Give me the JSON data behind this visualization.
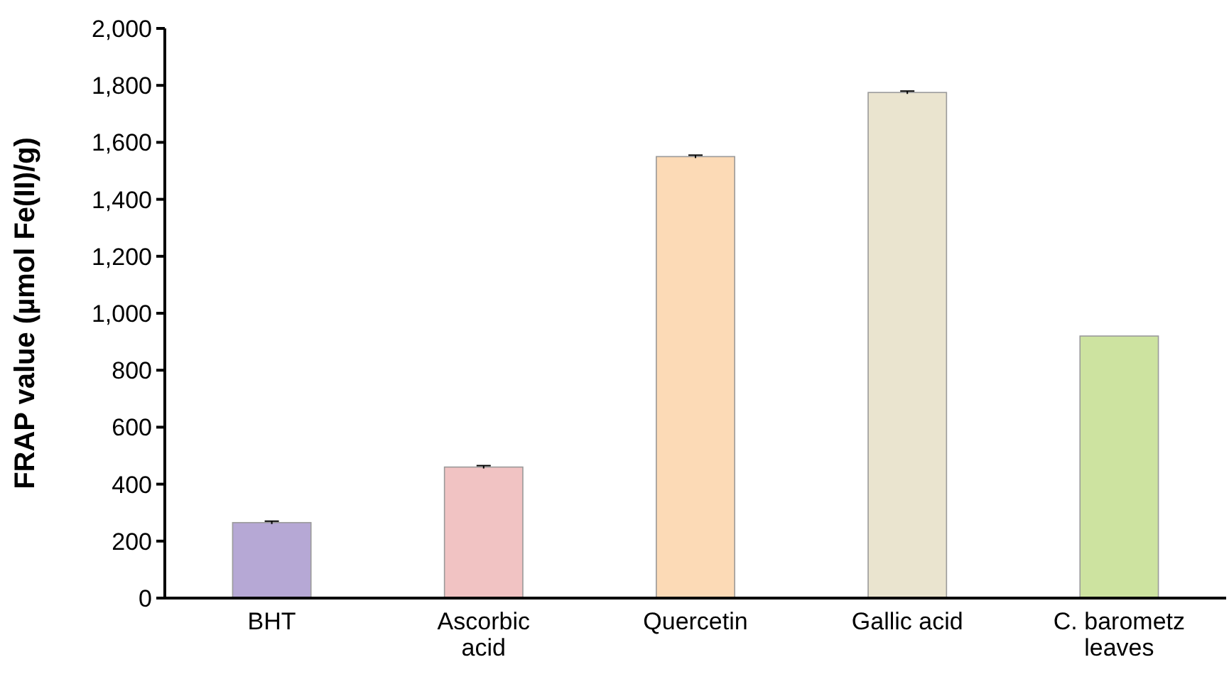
{
  "chart_data": {
    "type": "bar",
    "ylabel": "FRAP value (µmol Fe(II)/g)",
    "categories": [
      "BHT",
      "Ascorbic acid",
      "Quercetin",
      "Gallic acid",
      "C. barometz leaves"
    ],
    "values": [
      265,
      460,
      1550,
      1775,
      920
    ],
    "errors": [
      5,
      5,
      5,
      5,
      null
    ],
    "colors": [
      "#b6a8d5",
      "#f1c3c3",
      "#fcdab6",
      "#eae4cf",
      "#cde3a0"
    ],
    "ylim": [
      0,
      2000
    ],
    "yticks": [
      {
        "value": 0,
        "label": "0"
      },
      {
        "value": 200,
        "label": "200"
      },
      {
        "value": 400,
        "label": "400"
      },
      {
        "value": 600,
        "label": "600"
      },
      {
        "value": 800,
        "label": "800"
      },
      {
        "value": 1000,
        "label": "1,000"
      },
      {
        "value": 1200,
        "label": "1,200"
      },
      {
        "value": 1400,
        "label": "1,400"
      },
      {
        "value": 1600,
        "label": "1,600"
      },
      {
        "value": 1800,
        "label": "1,800"
      },
      {
        "value": 2000,
        "label": "2,000"
      }
    ],
    "grid": false
  }
}
